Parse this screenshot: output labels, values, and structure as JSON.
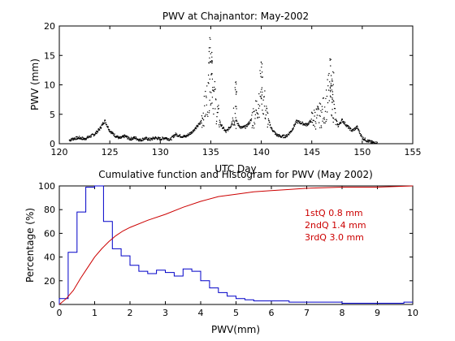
{
  "chart_data": [
    {
      "type": "scatter",
      "title": "PWV at Chajnantor: May-2002",
      "xlabel": "UTC Day",
      "ylabel": "PWV (mm)",
      "xlim": [
        120,
        155
      ],
      "ylim": [
        0,
        20
      ],
      "xticks": [
        "120",
        "125",
        "130",
        "135",
        "140",
        "145",
        "150",
        "155"
      ],
      "yticks": [
        "0",
        "5",
        "10",
        "15",
        "20"
      ],
      "series": [
        {
          "color": "#000000",
          "x": [
            121.0,
            121.5,
            122.0,
            122.5,
            123.0,
            123.5,
            124.0,
            124.5,
            125.0,
            125.5,
            126.0,
            126.5,
            127.0,
            127.5,
            128.0,
            128.5,
            129.0,
            129.5,
            130.0,
            130.5,
            131.0,
            131.5,
            132.0,
            132.5,
            133.0,
            133.5,
            134.0,
            134.5,
            134.8,
            135.0,
            135.3,
            135.6,
            136.0,
            136.5,
            137.0,
            137.3,
            137.6,
            138.0,
            138.5,
            139.0,
            139.5,
            139.8,
            140.0,
            140.2,
            140.5,
            141.0,
            141.5,
            142.0,
            142.5,
            143.0,
            143.5,
            144.0,
            144.5,
            145.0,
            145.5,
            146.0,
            146.5,
            146.8,
            147.0,
            147.3,
            147.6,
            148.0,
            148.5,
            149.0,
            149.5,
            150.0,
            150.5,
            151.0,
            151.5
          ],
          "y": [
            0.6,
            0.9,
            1.0,
            0.8,
            1.2,
            1.6,
            2.5,
            3.9,
            2.2,
            1.4,
            0.9,
            1.3,
            0.8,
            1.0,
            0.6,
            0.9,
            0.7,
            1.0,
            0.8,
            1.0,
            0.7,
            1.6,
            1.3,
            1.2,
            1.8,
            2.6,
            3.6,
            6.5,
            9.0,
            12.0,
            8.5,
            5.5,
            3.2,
            2.0,
            3.0,
            5.5,
            3.5,
            2.7,
            2.9,
            4.0,
            5.5,
            8.0,
            10.5,
            8.0,
            5.0,
            2.6,
            1.5,
            1.2,
            1.3,
            2.2,
            3.8,
            3.5,
            3.2,
            4.0,
            4.5,
            5.0,
            7.0,
            10.0,
            8.0,
            4.5,
            3.0,
            4.0,
            3.0,
            2.2,
            2.8,
            1.0,
            0.5,
            0.2,
            0.1
          ]
        }
      ],
      "spikes": [
        {
          "x": 134.9,
          "y": 18.0
        },
        {
          "x": 135.1,
          "y": 15.5
        },
        {
          "x": 137.5,
          "y": 10.5
        },
        {
          "x": 140.0,
          "y": 13.8
        },
        {
          "x": 146.9,
          "y": 14.3
        },
        {
          "x": 147.1,
          "y": 12.2
        }
      ]
    },
    {
      "type": "line",
      "title": "Cumulative function and Histogram for PWV (May 2002)",
      "xlabel": "PWV(mm)",
      "ylabel": "Percentage (%)",
      "xlim": [
        0,
        10
      ],
      "ylim": [
        0,
        100
      ],
      "xticks": [
        "0",
        "1",
        "2",
        "3",
        "4",
        "5",
        "6",
        "7",
        "8",
        "9",
        "10"
      ],
      "yticks": [
        "0",
        "20",
        "40",
        "60",
        "80",
        "100"
      ],
      "series": [
        {
          "kind": "histogram",
          "color": "#0000c8",
          "bin_width": 0.25,
          "bin_starts": [
            0,
            0.25,
            0.5,
            0.75,
            1.0,
            1.25,
            1.5,
            1.75,
            2.0,
            2.25,
            2.5,
            2.75,
            3.0,
            3.25,
            3.5,
            3.75,
            4.0,
            4.25,
            4.5,
            4.75,
            5.0,
            5.25,
            5.5,
            5.75,
            6.0,
            6.25,
            6.5,
            6.75,
            7.0,
            7.25,
            7.5,
            7.75,
            8.0,
            8.25,
            8.5,
            8.75,
            9.0,
            9.25,
            9.5,
            9.75
          ],
          "values": [
            5,
            44,
            78,
            99,
            100,
            70,
            47,
            41,
            33,
            28,
            26,
            29,
            27,
            24,
            30,
            28,
            20,
            14,
            10,
            7,
            5,
            4,
            3,
            3,
            3,
            3,
            2,
            2,
            2,
            2,
            2,
            2,
            1,
            1,
            1,
            1,
            1,
            1,
            1,
            2
          ]
        },
        {
          "kind": "cumulative",
          "color": "#cc0000",
          "x": [
            0,
            0.2,
            0.4,
            0.6,
            0.8,
            1.0,
            1.2,
            1.4,
            1.6,
            1.8,
            2.0,
            2.5,
            3.0,
            3.5,
            4.0,
            4.5,
            5.0,
            5.5,
            6.0,
            6.5,
            7.0,
            8.0,
            9.0,
            10.0
          ],
          "y": [
            0,
            5,
            12,
            22,
            31,
            40,
            47,
            53,
            58,
            62,
            65,
            71,
            76,
            82,
            87,
            91,
            93,
            95,
            96,
            97,
            98,
            99,
            99,
            100
          ]
        }
      ],
      "annotations": [
        {
          "text": "1stQ 0.8 mm",
          "color": "#cc0000"
        },
        {
          "text": "2ndQ 1.4 mm",
          "color": "#cc0000"
        },
        {
          "text": "3rdQ 3.0 mm",
          "color": "#cc0000"
        }
      ]
    }
  ]
}
